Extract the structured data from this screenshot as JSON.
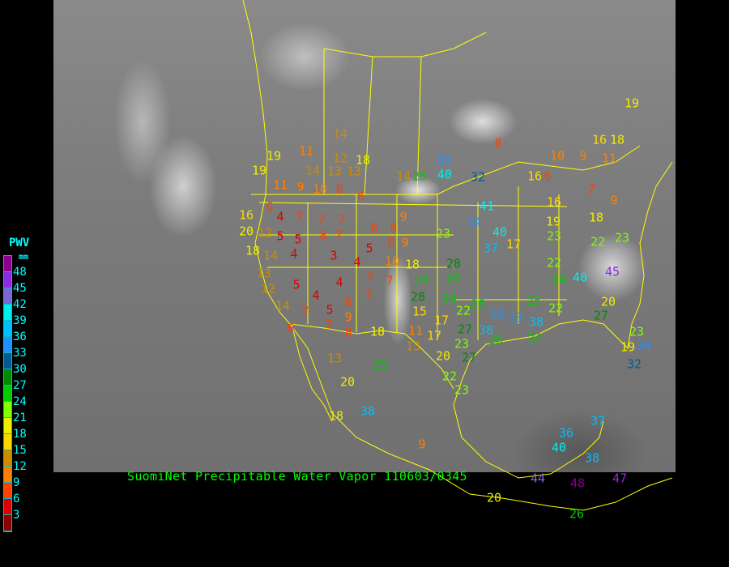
{
  "caption": "SuomiNet Precipitable Water Vapor 110603/0345",
  "legend": {
    "title": "PWV",
    "unit": "mm",
    "ticks": [
      "48",
      "45",
      "42",
      "39",
      "36",
      "33",
      "30",
      "27",
      "24",
      "21",
      "18",
      "15",
      "12",
      "9",
      "6",
      "3"
    ],
    "colors": [
      "#8b0090",
      "#8a2be2",
      "#7b68d8",
      "#00eeee",
      "#00bfff",
      "#1e90ff",
      "#005a96",
      "#008a00",
      "#00cc00",
      "#7fff00",
      "#eeee00",
      "#ffd700",
      "#cd8c00",
      "#ff8000",
      "#ff4000",
      "#dd0000",
      "#8b0000"
    ]
  },
  "stations": [
    "14",
    "8",
    "19",
    "11",
    "12",
    "18",
    "10",
    "9",
    "16",
    "18",
    "19",
    "19",
    "11",
    "14",
    "13",
    "13",
    "14",
    "25",
    "33",
    "40",
    "32",
    "16",
    "6",
    "11",
    "9",
    "10",
    "8",
    "6",
    "41",
    "16",
    "7",
    "9",
    "6",
    "4",
    "7",
    "7",
    "7",
    "6",
    "8",
    "9",
    "16",
    "34",
    "19",
    "18",
    "20",
    "12",
    "5",
    "5",
    "8",
    "7",
    "5",
    "6",
    "9",
    "40",
    "23",
    "23",
    "22",
    "23",
    "18",
    "14",
    "4",
    "3",
    "4",
    "7",
    "10",
    "18",
    "28",
    "37",
    "17",
    "22",
    "24",
    "40",
    "45",
    "13",
    "12",
    "5",
    "4",
    "4",
    "6",
    "7",
    "7",
    "24",
    "26",
    "28",
    "24",
    "22",
    "26",
    "33",
    "33",
    "25",
    "20",
    "14",
    "7",
    "5",
    "9",
    "15",
    "17",
    "27",
    "38",
    "38",
    "22",
    "27",
    "23",
    "6",
    "7",
    "8",
    "18",
    "11",
    "17",
    "23",
    "26",
    "24",
    "19",
    "34",
    "13",
    "20",
    "27",
    "13",
    "25",
    "22",
    "32",
    "20",
    "23",
    "18",
    "38",
    "37",
    "36",
    "9",
    "40",
    "38",
    "44",
    "48",
    "47",
    "20",
    "26"
  ]
}
